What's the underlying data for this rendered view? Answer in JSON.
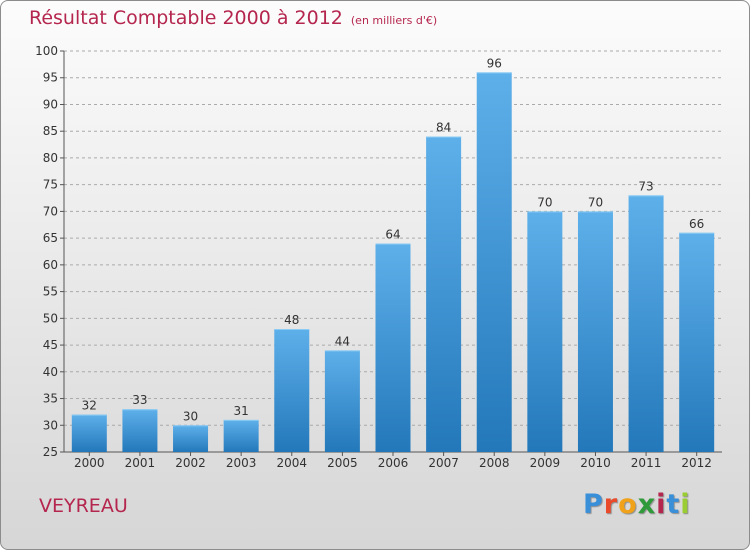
{
  "header": {
    "title": "Résultat Comptable 2000 à 2012",
    "subtitle": "(en milliers d'€)"
  },
  "footer": {
    "commune": "VEYREAU",
    "logo_letters": [
      "P",
      "r",
      "o",
      "x",
      "i",
      "t",
      "i"
    ],
    "logo_colors": [
      "#3a8fd9",
      "#e84a2a",
      "#f0a21a",
      "#2f9a3a",
      "#b5264e",
      "#3a8fd9",
      "#9acd32"
    ]
  },
  "colors": {
    "bar_top": "#5eb0ea",
    "bar_bottom": "#2378ba",
    "accent": "#b5264e",
    "grid": "#aaaaaa"
  },
  "chart_data": {
    "type": "bar",
    "title": "Résultat Comptable 2000 à 2012",
    "subtitle": "(en milliers d'€)",
    "categories": [
      "2000",
      "2001",
      "2002",
      "2003",
      "2004",
      "2005",
      "2006",
      "2007",
      "2008",
      "2009",
      "2010",
      "2011",
      "2012"
    ],
    "values": [
      32,
      33,
      30,
      31,
      48,
      44,
      64,
      84,
      96,
      70,
      70,
      73,
      66
    ],
    "data_labels": [
      "32",
      "33",
      "30",
      "31",
      "48",
      "44",
      "64",
      "84",
      "96",
      "70",
      "70",
      "73",
      "66"
    ],
    "y_ticks": [
      "25",
      "30",
      "35",
      "40",
      "45",
      "50",
      "55",
      "60",
      "65",
      "70",
      "75",
      "80",
      "85",
      "90",
      "95",
      "100"
    ],
    "ylim": [
      25,
      100
    ],
    "xlabel": "",
    "ylabel": "",
    "grid": true
  }
}
